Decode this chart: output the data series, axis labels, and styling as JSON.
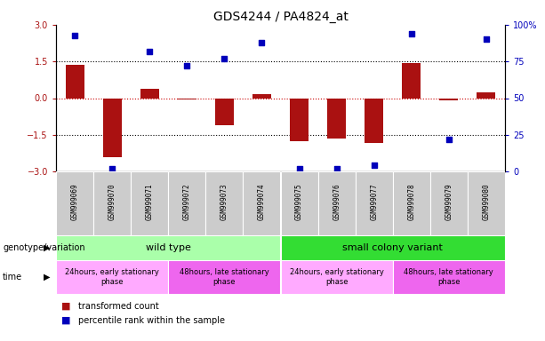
{
  "title": "GDS4244 / PA4824_at",
  "samples": [
    "GSM999069",
    "GSM999070",
    "GSM999071",
    "GSM999072",
    "GSM999073",
    "GSM999074",
    "GSM999075",
    "GSM999076",
    "GSM999077",
    "GSM999078",
    "GSM999079",
    "GSM999080"
  ],
  "bar_values": [
    1.35,
    -2.4,
    0.4,
    -0.05,
    -1.1,
    0.15,
    -1.75,
    -1.65,
    -1.85,
    1.45,
    -0.1,
    0.25
  ],
  "scatter_values_pct": [
    93,
    2,
    82,
    72,
    77,
    88,
    2,
    2,
    4,
    94,
    22,
    90
  ],
  "ylim_left": [
    -3,
    3
  ],
  "ylim_right": [
    0,
    100
  ],
  "left_ticks": [
    -3,
    -1.5,
    0,
    1.5,
    3
  ],
  "right_ticks": [
    0,
    25,
    50,
    75,
    100
  ],
  "dotted_lines_black": [
    1.5,
    -1.5
  ],
  "zero_line_color": "#cc0000",
  "bar_color": "#aa1111",
  "scatter_color": "#0000bb",
  "bar_width": 0.5,
  "genotype_groups": [
    {
      "label": "wild type",
      "start": 0,
      "end": 5,
      "color": "#aaffaa"
    },
    {
      "label": "small colony variant",
      "start": 6,
      "end": 11,
      "color": "#33dd33"
    }
  ],
  "time_groups": [
    {
      "label": "24hours, early stationary\nphase",
      "start": 0,
      "end": 2,
      "color": "#ffaaff"
    },
    {
      "label": "48hours, late stationary\nphase",
      "start": 3,
      "end": 5,
      "color": "#ee66ee"
    },
    {
      "label": "24hours, early stationary\nphase",
      "start": 6,
      "end": 8,
      "color": "#ffaaff"
    },
    {
      "label": "48hours, late stationary\nphase",
      "start": 9,
      "end": 11,
      "color": "#ee66ee"
    }
  ],
  "genotype_label": "genotype/variation",
  "time_label": "time",
  "legend_bar": "transformed count",
  "legend_scatter": "percentile rank within the sample",
  "scatter_marker_size": 20,
  "label_fontsize": 7,
  "tick_fontsize": 7,
  "sample_fontsize": 5.5,
  "group_fontsize": 8,
  "time_fontsize": 6
}
